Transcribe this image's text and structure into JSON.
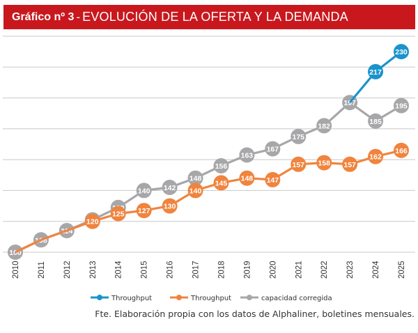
{
  "title": {
    "prefix": "Gráfico nº 3",
    "separator": "-",
    "main": "EVOLUCIÓN DE LA OFERTA Y LA DEMANDA"
  },
  "source_note": "Fte. Elaboración propia con los datos de Alphaliner, boletines mensuales.",
  "colors": {
    "title_bg": "#c8181e",
    "blue": "#1b93cc",
    "orange": "#f0843e",
    "gray": "#a7a7a9",
    "grid": "#c8c8c8"
  },
  "chart_data": {
    "type": "line",
    "title": "EVOLUCIÓN DE LA OFERTA Y LA DEMANDA",
    "categories": [
      "2010",
      "2011",
      "2012",
      "2013",
      "2014",
      "2015",
      "2016",
      "2017",
      "2018",
      "2019",
      "2020",
      "2021",
      "2022",
      "2023",
      "2024",
      "2025"
    ],
    "ylim": [
      100,
      240
    ],
    "grid": true,
    "legend_position": "bottom",
    "series": [
      {
        "name": "Throughput",
        "color": "#1b93cc",
        "values": [
          null,
          null,
          null,
          null,
          null,
          null,
          null,
          null,
          null,
          null,
          null,
          null,
          null,
          197,
          217,
          230
        ],
        "labels": [
          "",
          "",
          "",
          "",
          "",
          "",
          "",
          "",
          "",
          "",
          "",
          "",
          "",
          "",
          "217",
          "230"
        ]
      },
      {
        "name": "Throughput",
        "color": "#f0843e",
        "values": [
          100,
          108,
          114,
          120,
          125,
          127,
          130,
          140,
          145,
          148,
          147,
          157,
          158,
          157,
          162,
          166
        ],
        "labels": [
          "",
          "",
          "",
          "120",
          "125",
          "127",
          "130",
          "140",
          "145",
          "148",
          "147",
          "157",
          "158",
          "157",
          "162",
          "166"
        ]
      },
      {
        "name": "capacidad corregida",
        "color": "#a7a7a9",
        "values": [
          100,
          108,
          114,
          121,
          129,
          140,
          142,
          148,
          156,
          163,
          167,
          175,
          182,
          197,
          185,
          195
        ],
        "labels": [
          "100",
          "108",
          "114",
          "121",
          "129",
          "140",
          "142",
          "148",
          "156",
          "163",
          "167",
          "175",
          "182",
          "197",
          "185",
          "195"
        ]
      }
    ]
  }
}
